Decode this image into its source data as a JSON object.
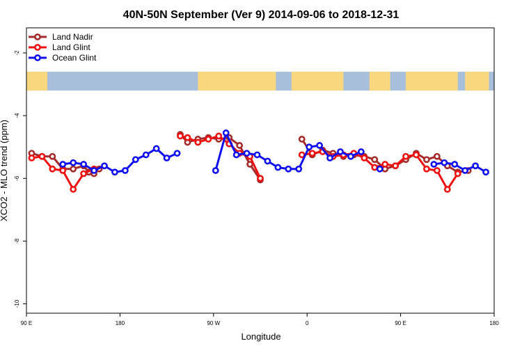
{
  "chart_data": {
    "type": "line",
    "title": "40N-50N September (Ver 9)   2014-09-06 to 2018-12-31",
    "xlabel": "Longitude",
    "ylabel": "XCO2 - MLO trend (ppm)",
    "xlim": [
      90,
      540
    ],
    "ylim": [
      -10.3,
      -1.2
    ],
    "x_ticks": [
      {
        "value": 90,
        "label": "90 E"
      },
      {
        "value": 180,
        "label": "180"
      },
      {
        "value": 270,
        "label": "90 W"
      },
      {
        "value": 360,
        "label": "0"
      },
      {
        "value": 450,
        "label": "90 E"
      },
      {
        "value": 540,
        "label": "180"
      }
    ],
    "y_ticks": [
      {
        "value": -2,
        "label": "-2"
      },
      {
        "value": -4,
        "label": "-4"
      },
      {
        "value": -6,
        "label": "-6"
      },
      {
        "value": -8,
        "label": "-8"
      },
      {
        "value": -10,
        "label": "-10"
      }
    ],
    "grid": false,
    "legend_position": "top-left",
    "map_strip": {
      "y_top": -2.6,
      "y_bottom": -3.2,
      "land_color": "#f9d77e",
      "ocean_color": "#a8bfdc"
    },
    "series": [
      {
        "name": "Land Nadir",
        "color": "#a52a2a",
        "segments": [
          [
            [
              95,
              -5.2
            ],
            [
              105,
              -5.3
            ],
            [
              115,
              -5.3
            ],
            [
              125,
              -5.7
            ],
            [
              135,
              -5.7
            ],
            [
              145,
              -5.6
            ],
            [
              150,
              -5.8
            ],
            [
              155,
              -5.85
            ],
            [
              160,
              -5.7
            ]
          ],
          [
            [
              238,
              -4.6
            ],
            [
              245,
              -4.85
            ],
            [
              255,
              -4.75
            ],
            [
              265,
              -4.7
            ],
            [
              275,
              -4.75
            ],
            [
              285,
              -4.7
            ],
            [
              295,
              -4.95
            ],
            [
              305,
              -5.55
            ],
            [
              315,
              -6.05
            ]
          ],
          [
            [
              355,
              -4.75
            ],
            [
              365,
              -5.25
            ],
            [
              375,
              -5.1
            ],
            [
              385,
              -5.2
            ],
            [
              395,
              -5.3
            ],
            [
              405,
              -5.25
            ],
            [
              415,
              -5.3
            ],
            [
              425,
              -5.4
            ],
            [
              435,
              -5.7
            ],
            [
              445,
              -5.6
            ],
            [
              455,
              -5.4
            ],
            [
              465,
              -5.2
            ],
            [
              475,
              -5.4
            ],
            [
              485,
              -5.3
            ],
            [
              495,
              -5.6
            ],
            [
              505,
              -5.8
            ],
            [
              515,
              -5.75
            ]
          ]
        ]
      },
      {
        "name": "Land Glint",
        "color": "#ee1111",
        "segments": [
          [
            [
              95,
              -5.35
            ],
            [
              105,
              -5.3
            ],
            [
              115,
              -5.7
            ],
            [
              125,
              -5.75
            ],
            [
              135,
              -6.35
            ],
            [
              145,
              -5.85
            ],
            [
              155,
              -5.7
            ]
          ],
          [
            [
              238,
              -4.65
            ],
            [
              245,
              -4.7
            ],
            [
              255,
              -4.85
            ],
            [
              265,
              -4.75
            ],
            [
              275,
              -4.65
            ],
            [
              285,
              -4.9
            ],
            [
              295,
              -5.2
            ],
            [
              305,
              -5.3
            ],
            [
              315,
              -6.0
            ]
          ],
          [
            [
              355,
              -5.25
            ],
            [
              365,
              -5.2
            ],
            [
              375,
              -5.15
            ],
            [
              385,
              -5.3
            ],
            [
              395,
              -5.25
            ],
            [
              405,
              -5.2
            ],
            [
              415,
              -5.35
            ],
            [
              425,
              -5.65
            ],
            [
              435,
              -5.55
            ],
            [
              445,
              -5.6
            ],
            [
              455,
              -5.3
            ],
            [
              465,
              -5.25
            ],
            [
              475,
              -5.7
            ],
            [
              485,
              -5.75
            ],
            [
              495,
              -6.35
            ],
            [
              505,
              -5.85
            ]
          ]
        ]
      },
      {
        "name": "Ocean Glint",
        "color": "#1010ee",
        "segments": [
          [
            [
              125,
              -5.55
            ],
            [
              135,
              -5.5
            ],
            [
              145,
              -5.55
            ],
            [
              155,
              -5.75
            ],
            [
              165,
              -5.6
            ],
            [
              175,
              -5.8
            ],
            [
              185,
              -5.75
            ],
            [
              195,
              -5.4
            ],
            [
              205,
              -5.25
            ],
            [
              215,
              -5.05
            ],
            [
              225,
              -5.35
            ],
            [
              235,
              -5.2
            ]
          ],
          [
            [
              272,
              -5.75
            ],
            [
              282,
              -4.55
            ],
            [
              292,
              -5.25
            ],
            [
              302,
              -5.2
            ],
            [
              312,
              -5.25
            ],
            [
              322,
              -5.45
            ],
            [
              332,
              -5.65
            ],
            [
              342,
              -5.7
            ],
            [
              352,
              -5.7
            ],
            [
              362,
              -5.0
            ],
            [
              372,
              -4.95
            ],
            [
              382,
              -5.35
            ],
            [
              392,
              -5.15
            ],
            [
              402,
              -5.3
            ],
            [
              412,
              -5.15
            ]
          ],
          [
            [
              430,
              -5.7
            ]
          ],
          [
            [
              482,
              -5.55
            ],
            [
              492,
              -5.5
            ],
            [
              502,
              -5.55
            ],
            [
              512,
              -5.75
            ],
            [
              522,
              -5.6
            ],
            [
              532,
              -5.8
            ]
          ]
        ]
      }
    ]
  }
}
